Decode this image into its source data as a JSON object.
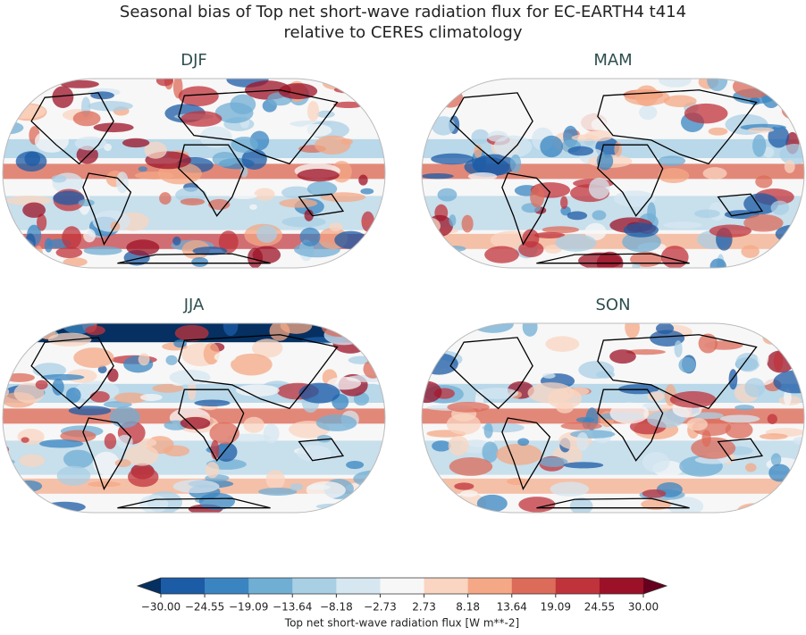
{
  "title": [
    "Seasonal bias of Top net short-wave radiation flux for EC-EARTH4 t414",
    "relative to CERES climatology"
  ],
  "panels": [
    {
      "title": "DJF"
    },
    {
      "title": "MAM"
    },
    {
      "title": "JJA"
    },
    {
      "title": "SON"
    }
  ],
  "colorbar": {
    "label": "Top net short-wave radiation flux [W m**-2]",
    "ticks": [
      {
        "value": -30,
        "label": "−30.00"
      },
      {
        "value": -24.55,
        "label": "−24.55"
      },
      {
        "value": -19.09,
        "label": "−19.09"
      },
      {
        "value": -13.64,
        "label": "−13.64"
      },
      {
        "value": -8.18,
        "label": "−8.18"
      },
      {
        "value": -2.73,
        "label": "−2.73"
      },
      2.73,
      8.18,
      13.64,
      19.09,
      24.55,
      {
        "value": 30,
        "label": "30.00"
      }
    ],
    "colors": [
      "#1c5ba6",
      "#3a85c1",
      "#70aed4",
      "#a9cfe5",
      "#d6e7f1",
      "#f7f7f7",
      "#f9d5c2",
      "#f4a886",
      "#dc6b59",
      "#c0333b",
      "#9c1127"
    ],
    "extend_colors": [
      "#053061",
      "#67001f"
    ]
  }
}
